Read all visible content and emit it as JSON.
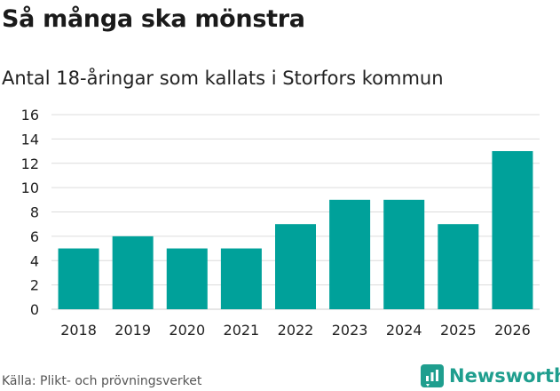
{
  "title": "Så många ska mönstra",
  "subtitle": "Antal 18-åringar som kallats i Storfors kommun",
  "source": "Källa: Plikt- och prövningsverket",
  "brand": {
    "name": "Newsworthy",
    "icon": "newsworthy-logo-icon",
    "color": "#1f9e8e"
  },
  "chart_data": {
    "type": "bar",
    "categories": [
      "2018",
      "2019",
      "2020",
      "2021",
      "2022",
      "2023",
      "2024",
      "2025",
      "2026"
    ],
    "values": [
      5,
      6,
      5,
      5,
      7,
      9,
      9,
      7,
      13
    ],
    "ylim": [
      0,
      16
    ],
    "yticks": [
      0,
      2,
      4,
      6,
      8,
      10,
      12,
      14,
      16
    ],
    "xlabel": "",
    "ylabel": "",
    "grid": true,
    "bar_color": "#00a19a"
  }
}
